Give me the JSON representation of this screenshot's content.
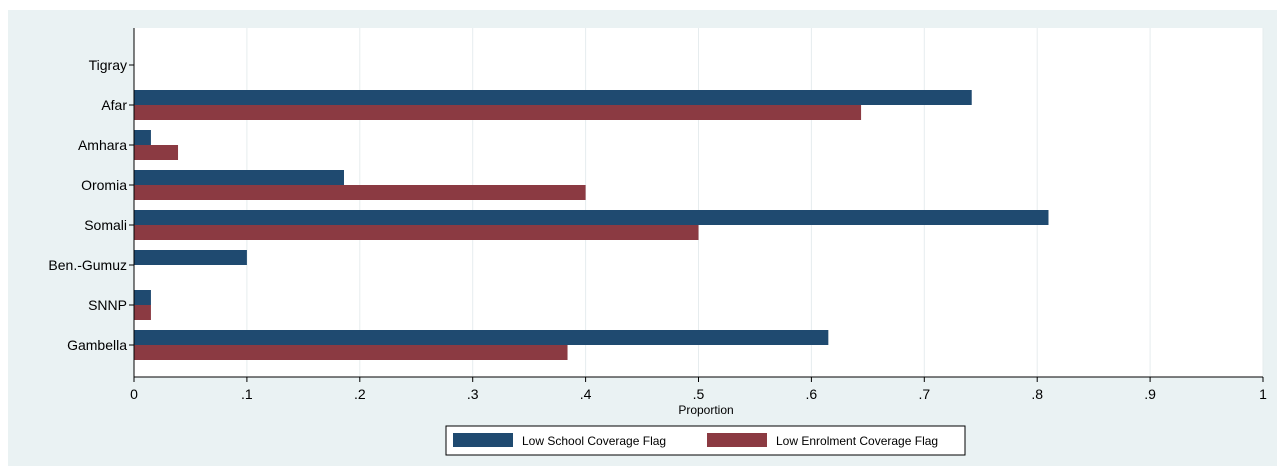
{
  "chart_data": {
    "type": "bar",
    "orientation": "horizontal",
    "categories": [
      "Tigray",
      "Afar",
      "Amhara",
      "Oromia",
      "Somali",
      "Ben.-Gumuz",
      "SNNP",
      "Gambella"
    ],
    "series": [
      {
        "name": "Low School Coverage Flag",
        "color": "#1f4a70",
        "values": [
          0,
          0.742,
          0.015,
          0.186,
          0.81,
          0.1,
          0.015,
          0.615
        ]
      },
      {
        "name": "Low Enrolment Coverage Flag",
        "color": "#8b3a42",
        "values": [
          0,
          0.644,
          0.039,
          0.4,
          0.5,
          0,
          0.015,
          0.384
        ]
      }
    ],
    "xlabel": "Proportion",
    "xlim": [
      0,
      1
    ],
    "xticks": [
      0,
      0.1,
      0.2,
      0.3,
      0.4,
      0.5,
      0.6,
      0.7,
      0.8,
      0.9,
      1
    ],
    "xtick_labels": [
      "0",
      ".1",
      ".2",
      ".3",
      ".4",
      ".5",
      ".6",
      ".7",
      ".8",
      ".9",
      "1"
    ],
    "grid": true,
    "legend_position": "bottom"
  }
}
